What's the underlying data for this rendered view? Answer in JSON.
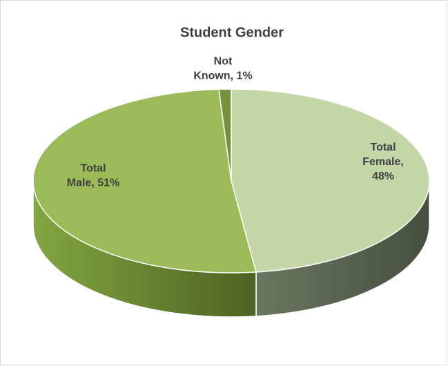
{
  "chart_data": {
    "type": "pie",
    "title": "Student Gender",
    "values": [
      48,
      51,
      1
    ],
    "value_labels": [
      "Total Female, 48%",
      "Total Male, 51%",
      "Not Known, 1%"
    ],
    "colors": [
      "#c4d6a7",
      "#9bbb59",
      "#76923c"
    ],
    "side_colors": [
      "#525d47",
      "#6f8d36",
      "#5a702e"
    ]
  }
}
